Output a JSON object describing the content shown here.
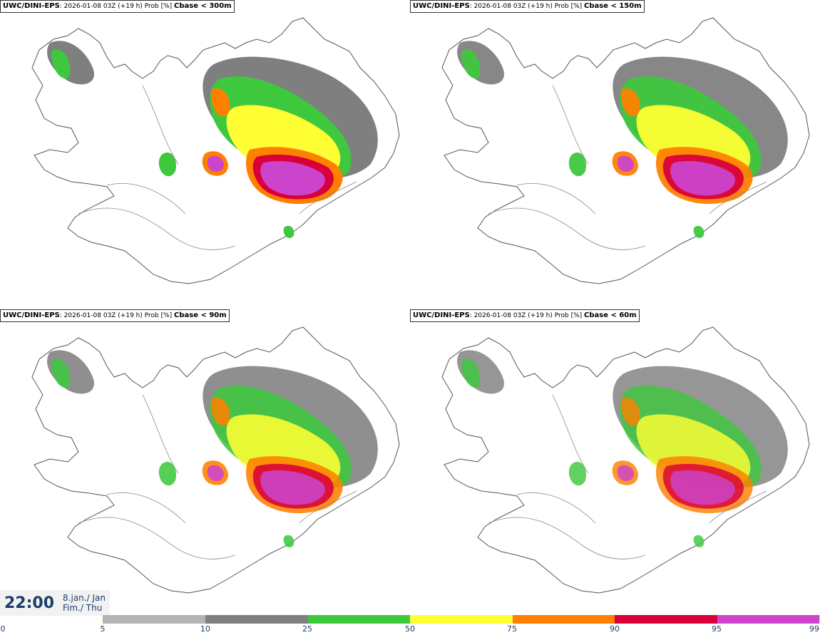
{
  "panels": [
    {
      "model": "UWC/DINI-EPS",
      "meta": ": 2026-01-08 03Z (+19 h) Prob [%] ",
      "variable": "Cbase < 300m"
    },
    {
      "model": "UWC/DINI-EPS",
      "meta": ": 2026-01-08 03Z (+19 h) Prob [%] ",
      "variable": "Cbase < 150m"
    },
    {
      "model": "UWC/DINI-EPS",
      "meta": ": 2026-01-08 03Z (+19 h) Prob [%] ",
      "variable": "Cbase < 90m"
    },
    {
      "model": "UWC/DINI-EPS",
      "meta": ": 2026-01-08 03Z (+19 h) Prob [%] ",
      "variable": "Cbase < 60m"
    }
  ],
  "valid_time": {
    "time": "22:00",
    "date_line1": "8.jan./ Jan",
    "date_line2": "Fim./ Thu"
  },
  "legend": {
    "ticks": [
      "0",
      "5",
      "10",
      "25",
      "50",
      "75",
      "90",
      "95",
      "99"
    ],
    "colors": [
      "#b4b4b4",
      "#7f7f7f",
      "#3ec83e",
      "#ffff33",
      "#ff7f00",
      "#d9003a",
      "#cc44cc",
      "#f7c8f7"
    ]
  }
}
